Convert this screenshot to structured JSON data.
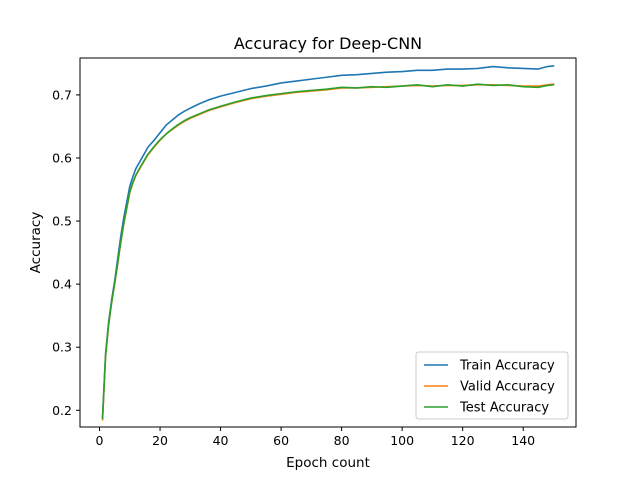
{
  "chart_data": {
    "type": "line",
    "title": "Accuracy for Deep-CNN",
    "xlabel": "Epoch count",
    "ylabel": "Accuracy",
    "xlim": [
      -6.45,
      157.45
    ],
    "ylim": [
      0.1735,
      0.7585
    ],
    "xticks": [
      0,
      20,
      40,
      60,
      80,
      100,
      120,
      140
    ],
    "yticks": [
      0.2,
      0.3,
      0.4,
      0.5,
      0.6,
      0.7
    ],
    "ytick_labels": [
      "0.2",
      "0.3",
      "0.4",
      "0.5",
      "0.6",
      "0.7"
    ],
    "grid": false,
    "legend_position": "bottom-right",
    "series": [
      {
        "name": "Train Accuracy",
        "color": "#1f77b4",
        "x": [
          1,
          2,
          3,
          4,
          5,
          6,
          7,
          8,
          9,
          10,
          11,
          12,
          14,
          16,
          18,
          20,
          22,
          24,
          26,
          28,
          30,
          33,
          36,
          40,
          45,
          50,
          55,
          60,
          65,
          70,
          75,
          80,
          85,
          90,
          95,
          100,
          105,
          110,
          115,
          120,
          125,
          130,
          135,
          140,
          145,
          148,
          150
        ],
        "y": [
          0.19,
          0.29,
          0.34,
          0.375,
          0.405,
          0.44,
          0.475,
          0.505,
          0.53,
          0.555,
          0.57,
          0.583,
          0.6,
          0.617,
          0.628,
          0.64,
          0.652,
          0.66,
          0.668,
          0.674,
          0.679,
          0.686,
          0.692,
          0.698,
          0.704,
          0.71,
          0.714,
          0.719,
          0.722,
          0.725,
          0.728,
          0.731,
          0.732,
          0.734,
          0.736,
          0.737,
          0.739,
          0.739,
          0.741,
          0.741,
          0.742,
          0.745,
          0.743,
          0.742,
          0.741,
          0.745,
          0.746
        ]
      },
      {
        "name": "Valid Accuracy",
        "color": "#ff7f0e",
        "x": [
          1,
          2,
          3,
          4,
          5,
          6,
          7,
          8,
          9,
          10,
          11,
          12,
          14,
          16,
          18,
          20,
          22,
          24,
          26,
          28,
          30,
          33,
          36,
          40,
          45,
          50,
          55,
          60,
          65,
          70,
          75,
          80,
          85,
          90,
          95,
          100,
          105,
          110,
          115,
          120,
          125,
          130,
          135,
          140,
          145,
          148,
          150
        ],
        "y": [
          0.185,
          0.285,
          0.335,
          0.37,
          0.4,
          0.432,
          0.465,
          0.495,
          0.52,
          0.545,
          0.56,
          0.572,
          0.589,
          0.605,
          0.617,
          0.628,
          0.638,
          0.645,
          0.652,
          0.658,
          0.663,
          0.669,
          0.675,
          0.681,
          0.688,
          0.694,
          0.698,
          0.701,
          0.704,
          0.706,
          0.708,
          0.711,
          0.711,
          0.712,
          0.713,
          0.714,
          0.715,
          0.714,
          0.715,
          0.715,
          0.716,
          0.716,
          0.715,
          0.714,
          0.714,
          0.716,
          0.717
        ]
      },
      {
        "name": "Test Accuracy",
        "color": "#2ca02c",
        "x": [
          1,
          2,
          3,
          4,
          5,
          6,
          7,
          8,
          9,
          10,
          11,
          12,
          14,
          16,
          18,
          20,
          22,
          24,
          26,
          28,
          30,
          33,
          36,
          40,
          45,
          50,
          55,
          60,
          65,
          70,
          75,
          80,
          85,
          90,
          95,
          100,
          105,
          110,
          115,
          120,
          125,
          130,
          135,
          140,
          145,
          148,
          150
        ],
        "y": [
          0.187,
          0.286,
          0.336,
          0.371,
          0.401,
          0.433,
          0.466,
          0.496,
          0.521,
          0.546,
          0.561,
          0.573,
          0.59,
          0.606,
          0.618,
          0.629,
          0.638,
          0.646,
          0.653,
          0.659,
          0.664,
          0.67,
          0.676,
          0.682,
          0.689,
          0.695,
          0.699,
          0.702,
          0.705,
          0.707,
          0.709,
          0.712,
          0.711,
          0.713,
          0.712,
          0.714,
          0.716,
          0.713,
          0.716,
          0.714,
          0.717,
          0.715,
          0.716,
          0.713,
          0.712,
          0.715,
          0.716
        ]
      }
    ]
  }
}
